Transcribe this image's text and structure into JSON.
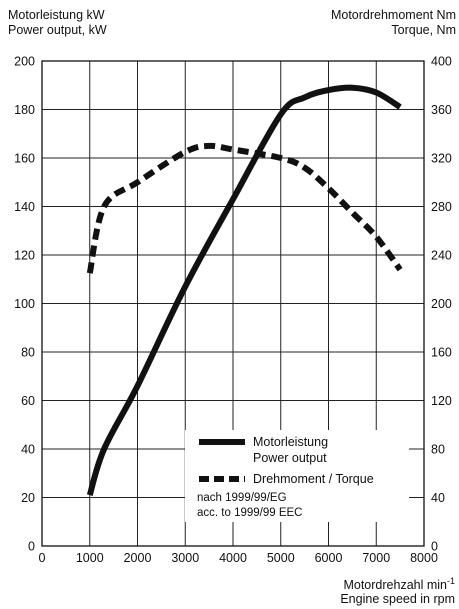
{
  "header": {
    "left_line1": "Motorleistung kW",
    "left_line2": "Power output, kW",
    "right_line1": "Motordrehmoment Nm",
    "right_line2": "Torque, Nm"
  },
  "footer": {
    "xlabel_line1": "Motordrehzahl min",
    "xlabel_sup": "-1",
    "xlabel_line2": "Engine speed in rpm"
  },
  "legend": {
    "power_line1": "Motorleistung",
    "power_line2": "Power output",
    "torque": "Drehmoment / Torque",
    "note_line1": "nach 1999/99/EG",
    "note_line2": "acc. to 1999/99 EEC"
  },
  "chart_data": {
    "type": "line",
    "xlabel": "Motordrehzahl min-1 / Engine speed in rpm",
    "ylabel_left": "Motorleistung kW / Power output, kW",
    "ylabel_right": "Motordrehmoment Nm / Torque, Nm",
    "xlim": [
      0,
      8000
    ],
    "ylim_left": [
      0,
      200
    ],
    "ylim_right": [
      0,
      400
    ],
    "x_ticks": [
      0,
      1000,
      2000,
      3000,
      4000,
      5000,
      6000,
      7000,
      8000
    ],
    "y_ticks_left": [
      0,
      20,
      40,
      60,
      80,
      100,
      120,
      140,
      160,
      180,
      200
    ],
    "y_ticks_right": [
      0,
      40,
      80,
      120,
      160,
      200,
      240,
      280,
      320,
      360,
      400
    ],
    "grid": true,
    "legend_position": "bottom-right",
    "series": [
      {
        "name": "Motorleistung / Power output",
        "axis": "left",
        "style": "solid",
        "x": [
          1000,
          1300,
          2000,
          3000,
          4000,
          5000,
          5500,
          6000,
          6500,
          7000,
          7500
        ],
        "y": [
          21,
          40,
          66,
          107,
          143,
          178,
          185,
          188,
          189,
          187,
          181
        ]
      },
      {
        "name": "Drehmoment / Torque",
        "axis": "right",
        "style": "dashed",
        "x": [
          1000,
          1300,
          2000,
          3000,
          3500,
          4000,
          5000,
          5500,
          6000,
          6500,
          7000,
          7500
        ],
        "y": [
          225,
          280,
          300,
          325,
          330,
          327,
          320,
          312,
          295,
          275,
          255,
          228
        ]
      }
    ]
  }
}
